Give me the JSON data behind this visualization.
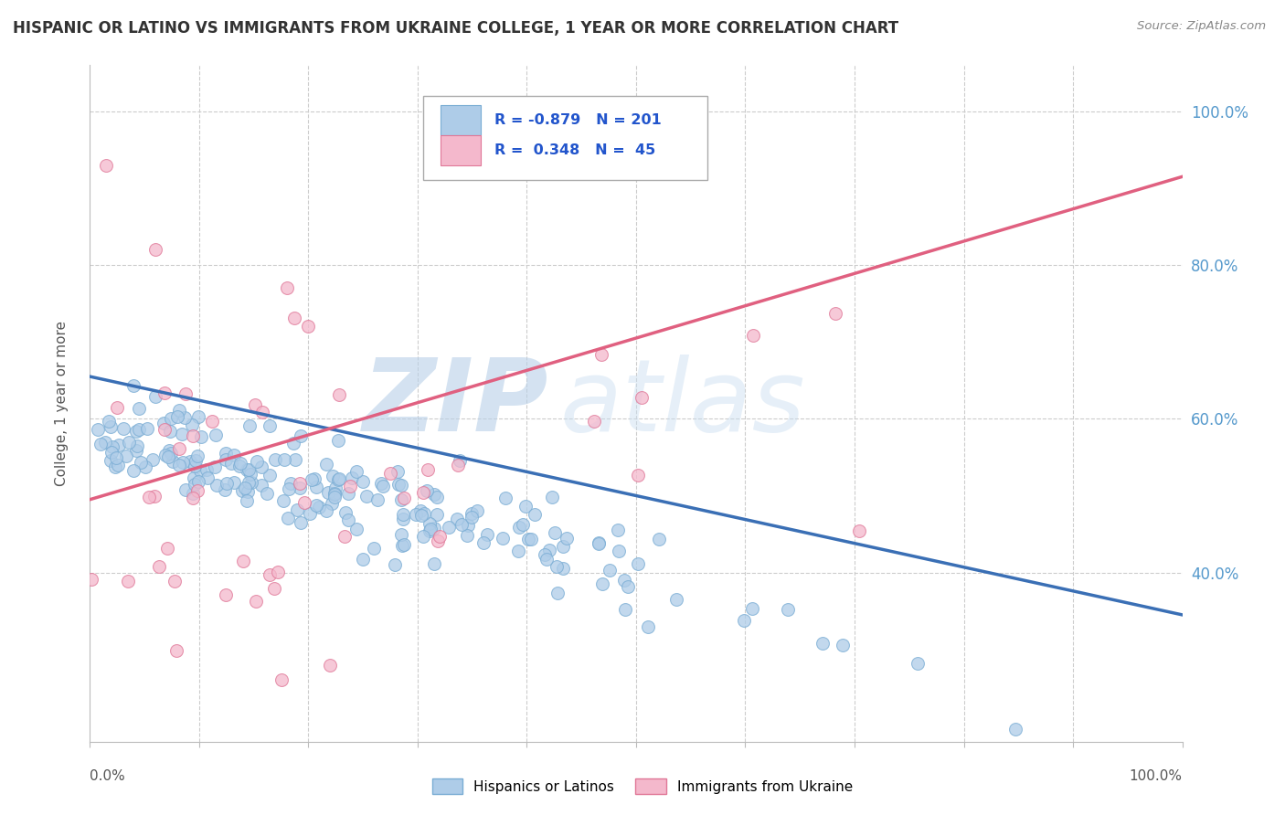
{
  "title": "HISPANIC OR LATINO VS IMMIGRANTS FROM UKRAINE COLLEGE, 1 YEAR OR MORE CORRELATION CHART",
  "source": "Source: ZipAtlas.com",
  "ylabel": "College, 1 year or more",
  "watermark_zip": "ZIP",
  "watermark_atlas": "atlas",
  "blue_label": "Hispanics or Latinos",
  "pink_label": "Immigrants from Ukraine",
  "blue_R": -0.879,
  "blue_N": 201,
  "pink_R": 0.348,
  "pink_N": 45,
  "blue_color": "#aecce8",
  "blue_edge": "#7aadd4",
  "pink_color": "#f4b8cc",
  "pink_edge": "#e07898",
  "blue_line_color": "#3a6fb5",
  "pink_line_color": "#e06080",
  "background_color": "#ffffff",
  "grid_color": "#cccccc",
  "ytick_color": "#5599cc",
  "xmin": 0.0,
  "xmax": 1.0,
  "ymin": 0.18,
  "ymax": 1.06,
  "blue_tline_x0": 0.0,
  "blue_tline_y0": 0.655,
  "blue_tline_x1": 1.0,
  "blue_tline_y1": 0.345,
  "pink_tline_x0": 0.0,
  "pink_tline_y0": 0.495,
  "pink_tline_x1": 1.0,
  "pink_tline_y1": 0.915
}
